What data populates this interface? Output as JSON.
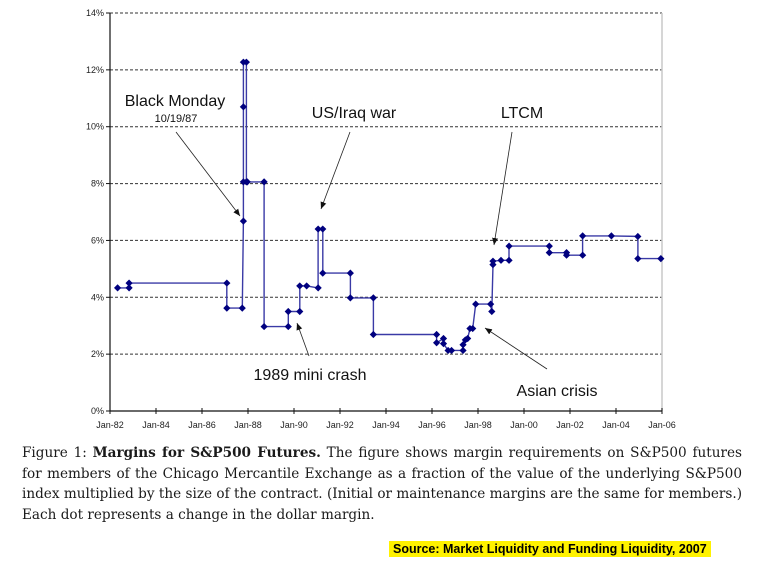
{
  "chart_data": {
    "type": "line",
    "title": "",
    "xlabel": "",
    "ylabel": "",
    "x_unit": "year",
    "xlim": [
      1982,
      2006
    ],
    "ylim": [
      0,
      14
    ],
    "y_tick_labels": [
      "0%",
      "2%",
      "4%",
      "6%",
      "8%",
      "10%",
      "12%",
      "14%"
    ],
    "y_tick_values": [
      0,
      2,
      4,
      6,
      8,
      10,
      12,
      14
    ],
    "x_tick_labels": [
      "Jan-82",
      "Jan-84",
      "Jan-86",
      "Jan-88",
      "Jan-90",
      "Jan-92",
      "Jan-94",
      "Jan-96",
      "Jan-98",
      "Jan-00",
      "Jan-02",
      "Jan-04",
      "Jan-06"
    ],
    "x_tick_values": [
      1982,
      1984,
      1986,
      1988,
      1990,
      1992,
      1994,
      1996,
      1998,
      2000,
      2002,
      2004,
      2006
    ],
    "grid": "horizontal-dashed",
    "line_color": "#00007f",
    "series": [
      {
        "name": "S&P500 futures margin",
        "points": [
          [
            1982.33,
            4.33
          ],
          [
            1982.83,
            4.33
          ],
          [
            1982.83,
            4.5
          ],
          [
            1987.08,
            4.5
          ],
          [
            1987.08,
            3.62
          ],
          [
            1987.75,
            3.62
          ],
          [
            1987.8,
            6.68
          ],
          [
            1987.8,
            8.06
          ],
          [
            1987.8,
            10.7
          ],
          [
            1987.8,
            12.27
          ],
          [
            1987.93,
            12.27
          ],
          [
            1987.93,
            8.06
          ],
          [
            1987.97,
            8.06
          ],
          [
            1988.7,
            8.06
          ],
          [
            1988.7,
            2.97
          ],
          [
            1989.75,
            2.97
          ],
          [
            1989.75,
            3.5
          ],
          [
            1990.25,
            3.5
          ],
          [
            1990.25,
            4.4
          ],
          [
            1990.55,
            4.4
          ],
          [
            1991.05,
            4.33
          ],
          [
            1991.05,
            6.4
          ],
          [
            1991.25,
            6.4
          ],
          [
            1991.25,
            4.85
          ],
          [
            1992.45,
            4.85
          ],
          [
            1992.45,
            3.98
          ],
          [
            1993.45,
            3.98
          ],
          [
            1993.45,
            2.69
          ],
          [
            1996.2,
            2.69
          ],
          [
            1996.2,
            2.4
          ],
          [
            1996.5,
            2.55
          ],
          [
            1996.5,
            2.37
          ],
          [
            1996.7,
            2.13
          ],
          [
            1996.85,
            2.13
          ],
          [
            1997.35,
            2.13
          ],
          [
            1997.35,
            2.33
          ],
          [
            1997.45,
            2.5
          ],
          [
            1997.55,
            2.55
          ],
          [
            1997.65,
            2.9
          ],
          [
            1997.77,
            2.9
          ],
          [
            1997.9,
            3.76
          ],
          [
            1998.55,
            3.76
          ],
          [
            1998.6,
            3.5
          ],
          [
            1998.65,
            5.15
          ],
          [
            1998.65,
            5.27
          ],
          [
            1999.0,
            5.3
          ],
          [
            1999.35,
            5.3
          ],
          [
            1999.35,
            5.8
          ],
          [
            2001.1,
            5.8
          ],
          [
            2001.1,
            5.57
          ],
          [
            2001.85,
            5.57
          ],
          [
            2001.85,
            5.48
          ],
          [
            2002.55,
            5.48
          ],
          [
            2002.55,
            6.16
          ],
          [
            2003.8,
            6.16
          ],
          [
            2004.95,
            6.14
          ],
          [
            2004.95,
            5.36
          ],
          [
            2005.95,
            5.36
          ]
        ]
      }
    ],
    "annotations": [
      {
        "id": "black-monday",
        "text": "Black Monday",
        "subtext": "10/19/87",
        "points_to": [
          1987.8,
          6.68
        ]
      },
      {
        "id": "us-iraq-war",
        "text": "US/Iraq war",
        "points_to": [
          1991.0,
          7.1
        ]
      },
      {
        "id": "ltcm",
        "text": "LTCM",
        "points_to": [
          1998.6,
          5.8
        ]
      },
      {
        "id": "mini-crash-1989",
        "text": "1989 mini crash",
        "points_to": [
          1990.2,
          3.1
        ]
      },
      {
        "id": "asian-crisis",
        "text": "Asian crisis",
        "points_to": [
          1997.9,
          2.95
        ]
      }
    ]
  },
  "caption": {
    "figure_label": "Figure 1:",
    "bold_title": "Margins for S&P500 Futures.",
    "body": "The figure shows margin requirements on S&P500 futures for members of the Chicago Mercantile Exchange as a fraction of the value of the underlying S&P500 index multiplied by the size of the contract. (Initial or maintenance margins are the same for members.) Each dot represents a change in the dollar margin."
  },
  "source_note": "Source: Market Liquidity and Funding Liquidity, 2007"
}
